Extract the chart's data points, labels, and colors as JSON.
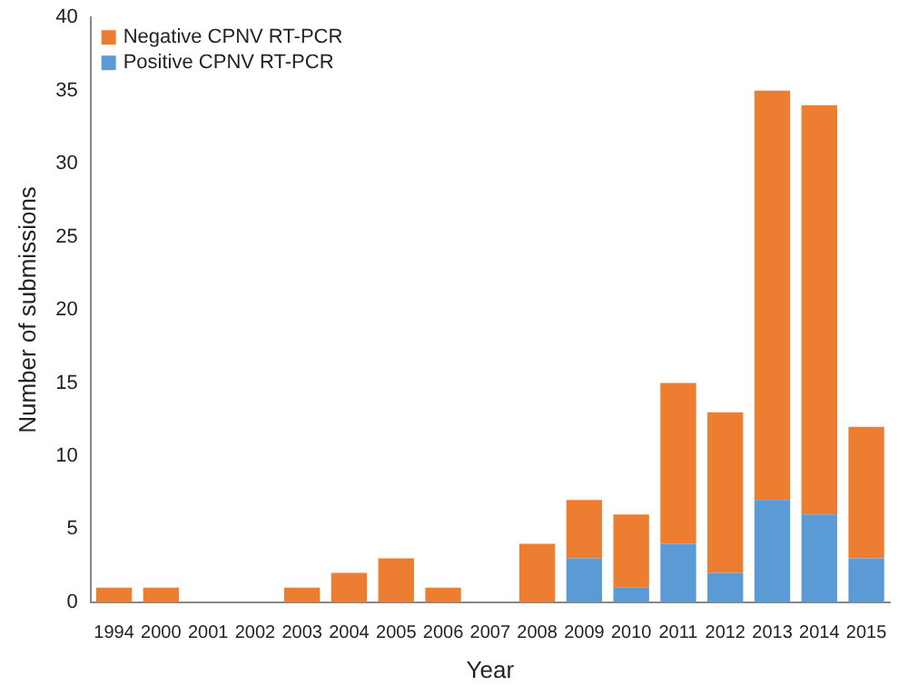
{
  "chart_data": {
    "type": "bar",
    "stacked": true,
    "xlabel": "Year",
    "ylabel": "Number of submissions",
    "categories": [
      "1994",
      "2000",
      "2001",
      "2002",
      "2003",
      "2004",
      "2005",
      "2006",
      "2007",
      "2008",
      "2009",
      "2010",
      "2011",
      "2012",
      "2013",
      "2014",
      "2015"
    ],
    "series": [
      {
        "name": "Positive CPNV RT-PCR",
        "color": "#5b9bd5",
        "values": [
          0,
          0,
          0,
          0,
          0,
          0,
          0,
          0,
          0,
          0,
          3,
          1,
          4,
          2,
          7,
          6,
          3
        ]
      },
      {
        "name": "Negative CPNV RT-PCR",
        "color": "#ed7d31",
        "values": [
          1,
          1,
          0,
          0,
          1,
          2,
          3,
          1,
          0,
          4,
          4,
          5,
          11,
          11,
          28,
          28,
          9
        ]
      }
    ],
    "ylim": [
      0,
      40
    ],
    "yticks": [
      0,
      5,
      10,
      15,
      20,
      25,
      30,
      35,
      40
    ],
    "grid": false,
    "legend": "top left"
  }
}
